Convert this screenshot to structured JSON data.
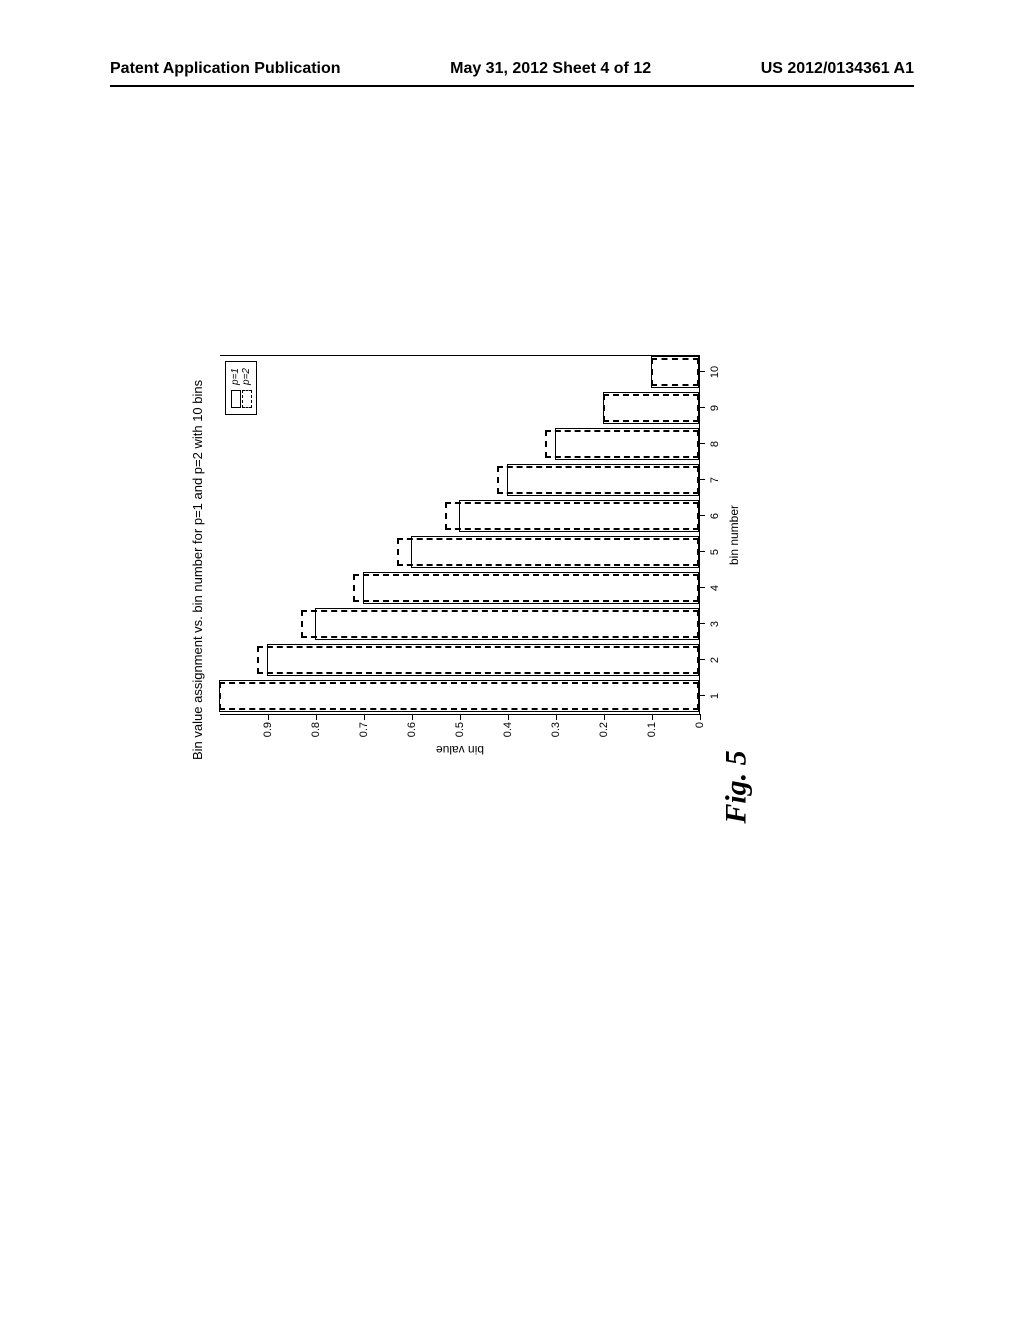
{
  "header": {
    "left": "Patent Application Publication",
    "center": "May 31, 2012  Sheet 4 of 12",
    "right": "US 2012/0134361 A1"
  },
  "figure": {
    "caption": "Fig. 5"
  },
  "chart": {
    "type": "bar",
    "title": "Bin value assignment vs. bin number for p=1 and p=2 with 10 bins",
    "xlabel": "bin number",
    "ylabel": "bin value",
    "ylim": [
      0,
      1
    ],
    "ytick_labels": [
      "0",
      "0.1",
      "0.2",
      "0.3",
      "0.4",
      "0.5",
      "0.6",
      "0.7",
      "0.8",
      "0.9"
    ],
    "ytick_values": [
      0,
      0.1,
      0.2,
      0.3,
      0.4,
      0.5,
      0.6,
      0.7,
      0.8,
      0.9
    ],
    "xtick_labels": [
      "1",
      "2",
      "3",
      "4",
      "5",
      "6",
      "7",
      "8",
      "9",
      "10"
    ],
    "xtick_values": [
      1,
      2,
      3,
      4,
      5,
      6,
      7,
      8,
      9,
      10
    ],
    "xlim": [
      0.5,
      10.5
    ],
    "bar_width_solid": 0.9,
    "bar_width_dashed": 0.8,
    "series": [
      {
        "name": "p=1",
        "style": "solid",
        "border_color": "#000000",
        "values": [
          1.0,
          0.9,
          0.8,
          0.7,
          0.6,
          0.5,
          0.4,
          0.3,
          0.2,
          0.1
        ]
      },
      {
        "name": "p=2",
        "style": "dashed",
        "border_color": "#000000",
        "values": [
          1.0,
          0.92,
          0.83,
          0.72,
          0.63,
          0.53,
          0.42,
          0.32,
          0.2,
          0.1
        ]
      }
    ],
    "legend": {
      "position": "top-right",
      "items": [
        {
          "label": "p=1",
          "style": "solid"
        },
        {
          "label": "p=2",
          "style": "dashed"
        }
      ]
    },
    "background_color": "#ffffff",
    "axis_color": "#000000",
    "title_fontsize": 13,
    "label_fontsize": 12,
    "tick_fontsize": 11
  }
}
